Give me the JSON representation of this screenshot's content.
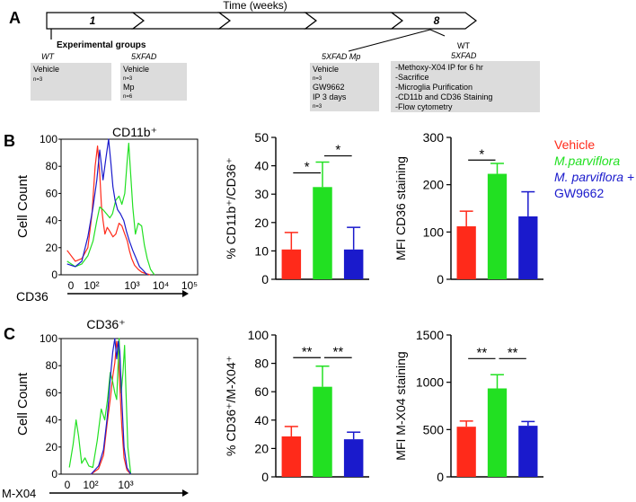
{
  "panel_a": {
    "label": "A",
    "time_label": "Time (weeks)",
    "week_start": "1",
    "week_end": "8",
    "experimental_groups_title": "Experimental groups",
    "groups": [
      {
        "genotype": "WT",
        "lines": [
          "Vehicle",
          "n=3"
        ]
      },
      {
        "genotype": "5XFAD",
        "lines": [
          "Vehicle",
          "n=3",
          "Mp",
          "n=6"
        ]
      },
      {
        "genotype": "5XFAD Mp",
        "lines": [
          "Vehicle",
          "n=3",
          "GW9662",
          "IP 3 days",
          "n=3"
        ]
      }
    ],
    "procedure_genotypes": [
      "WT",
      "5XFAD"
    ],
    "procedure_steps": [
      "-Methoxy-X04 IP for 6 hr",
      "-Sacrifice",
      "-Microglia Purification",
      "-CD11b and CD36 Staining",
      "-Flow cytometry"
    ]
  },
  "legend": {
    "items": [
      {
        "label": "Vehicle",
        "italic": false,
        "color": "#ff2a1a"
      },
      {
        "label": "M.parviflora",
        "italic": true,
        "color": "#22e022"
      },
      {
        "label": "M. parviflora +",
        "italic": true,
        "color": "#1a1acc"
      },
      {
        "label": "GW9662",
        "italic": false,
        "color": "#1a1acc"
      }
    ]
  },
  "colors": {
    "vehicle": "#ff2a1a",
    "mparviflora": "#22e022",
    "gw9662": "#1a1acc",
    "axis": "#000000"
  },
  "chart_data": [
    {
      "id": "hist_b",
      "type": "line",
      "panel_label": "B",
      "title": "CD11b⁺",
      "xlabel": "CD36",
      "ylabel": "Cell Count",
      "x_scale": "log",
      "xlim": [
        5,
        200000
      ],
      "ylim": [
        0,
        100
      ],
      "y_ticks": [
        "0",
        "20",
        "40",
        "60",
        "80",
        "100"
      ],
      "x_ticks": [
        "0",
        "10²",
        "10³",
        "10⁴",
        "10⁵"
      ],
      "series": [
        {
          "name": "Vehicle",
          "color": "#ff2a1a",
          "x": [
            8,
            15,
            25,
            40,
            55,
            70,
            85,
            100,
            115,
            130,
            150,
            180,
            220,
            280,
            350,
            450,
            560,
            700,
            850,
            1000,
            1200,
            1500,
            2000,
            2600,
            3500,
            5000
          ],
          "y": [
            18,
            10,
            12,
            20,
            45,
            80,
            95,
            75,
            50,
            40,
            30,
            35,
            32,
            28,
            30,
            38,
            36,
            30,
            25,
            18,
            12,
            7,
            4,
            2,
            1,
            0
          ]
        },
        {
          "name": "M.parviflora",
          "color": "#22e022",
          "x": [
            8,
            15,
            25,
            40,
            60,
            80,
            100,
            130,
            170,
            220,
            270,
            350,
            450,
            560,
            700,
            850,
            950,
            1100,
            1300,
            1600,
            2000,
            2600,
            3200,
            4000,
            5200,
            7000
          ],
          "y": [
            10,
            6,
            8,
            14,
            25,
            40,
            50,
            48,
            45,
            42,
            45,
            55,
            58,
            52,
            60,
            85,
            97,
            75,
            50,
            30,
            38,
            36,
            22,
            12,
            4,
            0
          ]
        },
        {
          "name": "M. parviflora + GW9662",
          "color": "#1a1acc",
          "x": [
            8,
            15,
            25,
            40,
            60,
            80,
            100,
            130,
            160,
            200,
            240,
            280,
            330,
            400,
            500,
            650,
            800,
            1000,
            1300,
            1700,
            2200,
            3000,
            4000
          ],
          "y": [
            8,
            6,
            10,
            28,
            50,
            70,
            92,
            70,
            85,
            100,
            82,
            65,
            55,
            48,
            45,
            40,
            32,
            25,
            18,
            12,
            6,
            3,
            0
          ]
        }
      ]
    },
    {
      "id": "bar_b1",
      "type": "bar",
      "ylabel": "% CD11b⁺/CD36⁺",
      "ylim": [
        0,
        50
      ],
      "y_ticks": [
        "0",
        "10",
        "20",
        "30",
        "40",
        "50"
      ],
      "categories": [
        "Vehicle",
        "M.parviflora",
        "M. parviflora + GW9662"
      ],
      "values": [
        10.5,
        32.5,
        10.5
      ],
      "errors": [
        6.0,
        8.8,
        7.8
      ],
      "significance": [
        {
          "from": 0,
          "to": 1,
          "label": "*",
          "y": 37.5
        },
        {
          "from": 1,
          "to": 2,
          "label": "*",
          "y": 43.5
        }
      ]
    },
    {
      "id": "bar_b2",
      "type": "bar",
      "ylabel": "MFI CD36 staining",
      "ylim": [
        0,
        300
      ],
      "y_ticks": [
        "0",
        "100",
        "200",
        "300"
      ],
      "categories": [
        "Vehicle",
        "M.parviflora",
        "M. parviflora + GW9662"
      ],
      "values": [
        112,
        223,
        133
      ],
      "errors": [
        32,
        22,
        52
      ],
      "significance": [
        {
          "from": 0,
          "to": 1,
          "label": "*",
          "y": 252
        }
      ]
    },
    {
      "id": "hist_c",
      "type": "line",
      "panel_label": "C",
      "title": "CD36⁺",
      "xlabel": "M-X04",
      "ylabel": "Cell Count",
      "x_scale": "log",
      "xlim": [
        20,
        200000
      ],
      "ylim": [
        0,
        100
      ],
      "y_ticks": [
        "0",
        "20",
        "40",
        "60",
        "80",
        "100"
      ],
      "x_ticks": [
        "0",
        "10²",
        "10³"
      ],
      "series": [
        {
          "name": "Vehicle",
          "color": "#ff2a1a",
          "x": [
            150,
            250,
            350,
            450,
            550,
            650,
            750,
            850,
            950,
            1050,
            1200,
            1400,
            1700,
            2200
          ],
          "y": [
            0,
            4,
            14,
            38,
            55,
            72,
            82,
            98,
            88,
            65,
            35,
            12,
            3,
            0
          ]
        },
        {
          "name": "M.parviflora",
          "color": "#22e022",
          "x": [
            35,
            45,
            55,
            65,
            80,
            100,
            130,
            170,
            230,
            300,
            380,
            460,
            550,
            650,
            750,
            850,
            1000,
            1150,
            1300,
            1450,
            1600,
            1800,
            2200
          ],
          "y": [
            5,
            22,
            40,
            28,
            8,
            12,
            6,
            5,
            25,
            48,
            40,
            55,
            75,
            68,
            60,
            55,
            100,
            60,
            75,
            95,
            60,
            20,
            0
          ]
        },
        {
          "name": "M. parviflora + GW9662",
          "color": "#1a1acc",
          "x": [
            150,
            250,
            350,
            450,
            550,
            650,
            750,
            850,
            950,
            1050,
            1200,
            1400,
            1700,
            2200
          ],
          "y": [
            0,
            6,
            18,
            42,
            70,
            90,
            100,
            85,
            98,
            90,
            55,
            20,
            5,
            0
          ]
        }
      ]
    },
    {
      "id": "bar_c1",
      "type": "bar",
      "ylabel": "% CD36⁺/M-X04⁺",
      "ylim": [
        0,
        100
      ],
      "y_ticks": [
        "0",
        "20",
        "40",
        "60",
        "80",
        "100"
      ],
      "categories": [
        "Vehicle",
        "M.parviflora",
        "M. parviflora + GW9662"
      ],
      "values": [
        28.5,
        63.5,
        26.5
      ],
      "errors": [
        7.0,
        14.5,
        5.0
      ],
      "significance": [
        {
          "from": 0,
          "to": 1,
          "label": "**",
          "y": 84
        },
        {
          "from": 1,
          "to": 2,
          "label": "**",
          "y": 84
        }
      ]
    },
    {
      "id": "bar_c2",
      "type": "bar",
      "ylabel": "MFI M-X04 staining",
      "ylim": [
        0,
        1500
      ],
      "y_ticks": [
        "0",
        "500",
        "1000",
        "1500"
      ],
      "categories": [
        "Vehicle",
        "M.parviflora",
        "M. parviflora + GW9662"
      ],
      "values": [
        530,
        935,
        540
      ],
      "errors": [
        60,
        145,
        45
      ],
      "significance": [
        {
          "from": 0,
          "to": 1,
          "label": "**",
          "y": 1250
        },
        {
          "from": 1,
          "to": 2,
          "label": "**",
          "y": 1250
        }
      ]
    }
  ]
}
